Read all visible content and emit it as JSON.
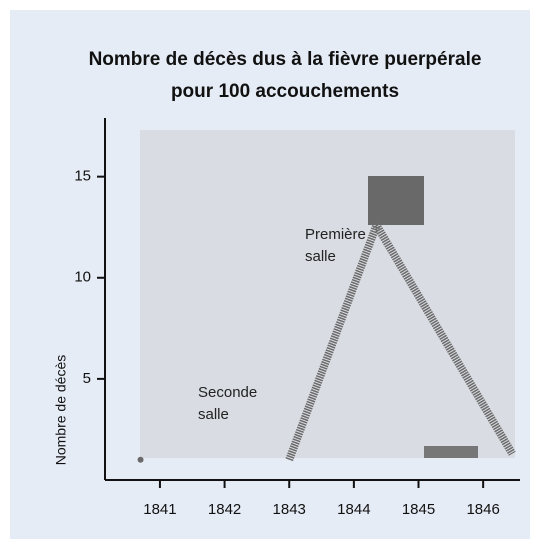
{
  "chart_data": {
    "type": "line",
    "title": [
      "Nombre de décès dus à la fièvre puerpérale",
      "pour 100 accouchements"
    ],
    "y_label": "Nombre de décès",
    "series": [
      {
        "name": "Première salle",
        "color": "#6a6a6a",
        "x": [
          1843,
          1844.35,
          1846.45
        ],
        "values": [
          1,
          12.6,
          1.3
        ]
      },
      {
        "name": "Seconde salle",
        "color": "#6a6a6a",
        "x": [
          1840.7
        ],
        "values": [
          1
        ]
      }
    ],
    "xlim": [
      1840.15,
      1846.57
    ],
    "xticks": [
      1841,
      1842,
      1843,
      1844,
      1845,
      1846
    ],
    "ylim": [
      0,
      17.9
    ],
    "yticks": [
      5,
      10,
      15
    ]
  }
}
